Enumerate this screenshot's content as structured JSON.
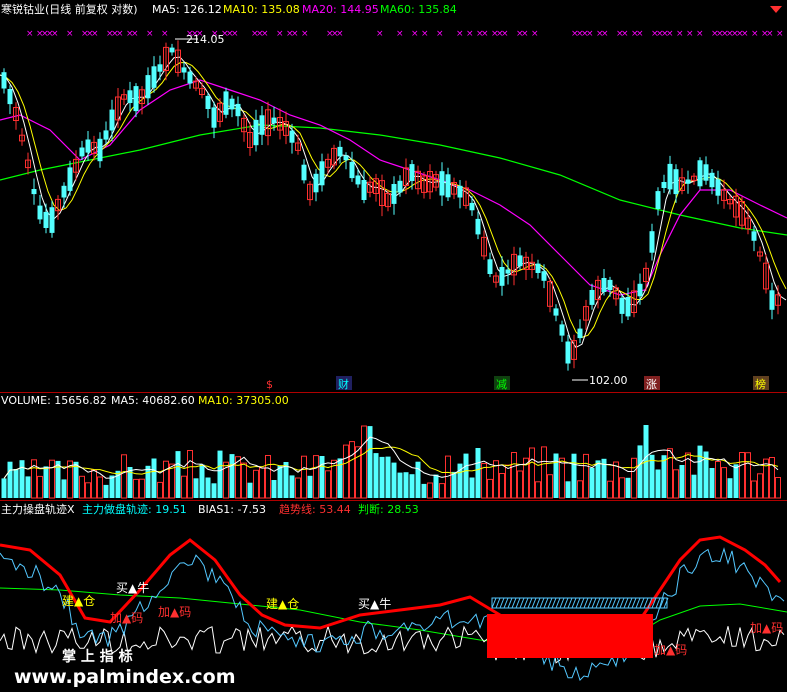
{
  "header": {
    "title": "寒锐钴业(日线 前复权 对数)",
    "indicators": [
      {
        "label": "MA5: 126.12",
        "color": "#ffffff"
      },
      {
        "label": "MA10: 135.08",
        "color": "#ffff00"
      },
      {
        "label": "MA20: 144.95",
        "color": "#ff00ff"
      },
      {
        "label": "MA60: 135.84",
        "color": "#00ff00"
      }
    ]
  },
  "volume_header": {
    "indicators": [
      {
        "label": "VOLUME: 15656.82",
        "color": "#ffffff"
      },
      {
        "label": "MA5: 40682.60",
        "color": "#ffffff"
      },
      {
        "label": "MA10: 37305.00",
        "color": "#ffff00"
      }
    ]
  },
  "indicator_header": {
    "indicators": [
      {
        "label": "主力操盘轨迹X",
        "color": "#ffffff"
      },
      {
        "label": "主力做盘轨迹: 19.51",
        "color": "#00ffff"
      },
      {
        "label": "BIAS1: -7.53",
        "color": "#ffffff"
      },
      {
        "label": "趋势线: 53.44",
        "color": "#ff3030"
      },
      {
        "label": "判断: 28.53",
        "color": "#00ff00"
      }
    ]
  },
  "price_annotations": {
    "high": "214.05",
    "low": "102.00"
  },
  "event_tags": [
    {
      "text": "$",
      "color": "#ff3030",
      "bg": "#000000"
    },
    {
      "text": "财",
      "color": "#00ffff",
      "bg": "#202060"
    },
    {
      "text": "减",
      "color": "#00ff00",
      "bg": "#104010"
    },
    {
      "text": "涨",
      "color": "#ffffff",
      "bg": "#802020"
    },
    {
      "text": "榜",
      "color": "#ffff00",
      "bg": "#604020"
    }
  ],
  "signals": [
    {
      "text": "建▲仓",
      "color": "#ffff00"
    },
    {
      "text": "买▲牛",
      "color": "#ffffff"
    },
    {
      "text": "加▲码",
      "color": "#ff3030"
    },
    {
      "text": "加▲码",
      "color": "#ff3030"
    },
    {
      "text": "建▲仓",
      "color": "#ffff00"
    },
    {
      "text": "买▲牛",
      "color": "#ffffff"
    },
    {
      "text": "加▲码",
      "color": "#ff3030"
    },
    {
      "text": "加▲码",
      "color": "#ff3030"
    }
  ],
  "watermark": {
    "brand": "掌 上 指 标",
    "url": "www.palmindex.com"
  },
  "chart_data": {
    "type": "candlestick",
    "scale": "log",
    "price_range": [
      102.0,
      214.05
    ],
    "moving_averages": [
      "MA5",
      "MA10",
      "MA20",
      "MA60"
    ],
    "last_values": {
      "MA5": 126.12,
      "MA10": 135.08,
      "MA20": 144.95,
      "MA60": 135.84
    },
    "volume_last": {
      "VOLUME": 15656.82,
      "MA5": 40682.6,
      "MA10": 37305.0
    },
    "indicator_last": {
      "主力做盘轨迹": 19.51,
      "BIAS1": -7.53,
      "趋势线": 53.44,
      "判断": 28.53
    }
  }
}
